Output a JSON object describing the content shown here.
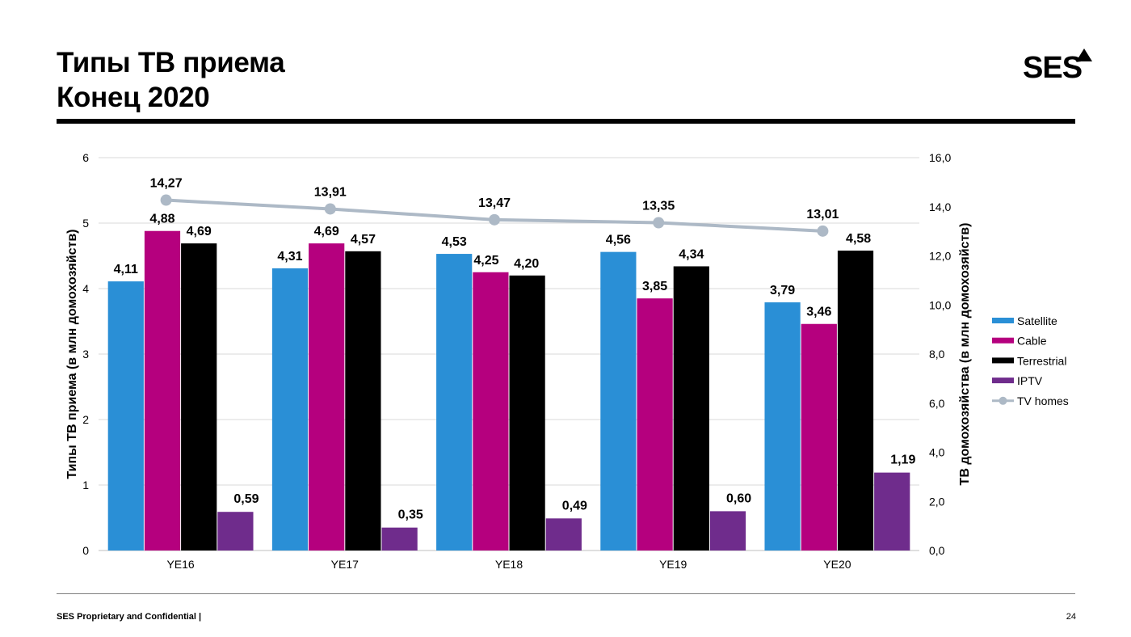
{
  "slide": {
    "title_line1": "Типы ТВ приема",
    "title_line2": "Конец 2020",
    "logo_text": "SES",
    "footer_left": "SES Proprietary and Confidential   |",
    "page_number": "24",
    "colors": {
      "title_rule": "#000000",
      "footer_rule": "#7f7f7f"
    }
  },
  "chart_data": {
    "type": "bar",
    "categories": [
      "YE16",
      "YE17",
      "YE18",
      "YE19",
      "YE20"
    ],
    "ylabel": "Типы ТВ приема (в млн домохозяйств)",
    "ylabel_right": "ТВ домохозяйства (в млн домохозяйств)",
    "ylim": [
      0,
      6
    ],
    "yticks": [
      "0",
      "1",
      "2",
      "3",
      "4",
      "5",
      "6"
    ],
    "ylim_right": [
      0,
      16
    ],
    "yticks_right": [
      "0,0",
      "2,0",
      "4,0",
      "6,0",
      "8,0",
      "10,0",
      "12,0",
      "14,0",
      "16,0"
    ],
    "grid": true,
    "legend_position": "right",
    "series": [
      {
        "name": "Satellite",
        "values": [
          4.11,
          4.31,
          4.53,
          4.56,
          3.79
        ],
        "labels": [
          "4,11",
          "4,31",
          "4,53",
          "4,56",
          "3,79"
        ],
        "color": "#2a8fd6"
      },
      {
        "name": "Cable",
        "values": [
          4.88,
          4.69,
          4.25,
          3.85,
          3.46
        ],
        "labels": [
          "4,88",
          "4,69",
          "4,25",
          "3,85",
          "3,46"
        ],
        "color": "#b5007e"
      },
      {
        "name": "Terrestrial",
        "values": [
          4.69,
          4.57,
          4.2,
          4.34,
          4.58
        ],
        "labels": [
          "4,69",
          "4,57",
          "4,20",
          "4,34",
          "4,58"
        ],
        "color": "#000000"
      },
      {
        "name": "IPTV",
        "values": [
          0.59,
          0.35,
          0.49,
          0.6,
          1.19
        ],
        "labels": [
          "0,59",
          "0,35",
          "0,49",
          "0,60",
          "1,19"
        ],
        "color": "#6f2c8c"
      }
    ],
    "line_series": {
      "name": "TV homes",
      "type": "line",
      "axis": "right",
      "values": [
        14.27,
        13.91,
        13.47,
        13.35,
        13.01
      ],
      "labels": [
        "14,27",
        "13,91",
        "13,47",
        "13,35",
        "13,01"
      ],
      "color": "#adb9c6"
    }
  }
}
